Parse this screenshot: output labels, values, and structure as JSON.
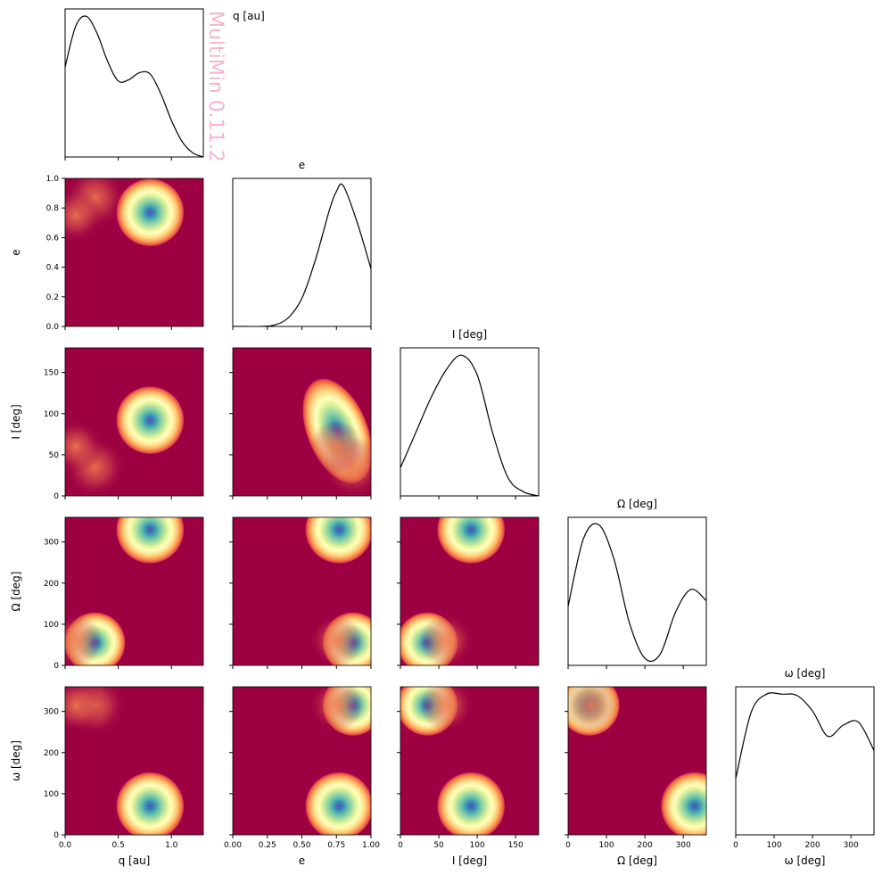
{
  "watermark": "MultiMin 0.11.2",
  "colormap": "Spectral",
  "colors": {
    "background_low": "#9e0142",
    "mid": "#fee08b",
    "high": "#5e4fa2",
    "line": "#000000"
  },
  "chart_data": {
    "type": "corner",
    "variables": [
      {
        "key": "q",
        "symbol": "q",
        "unit": "[au]",
        "range": [
          0,
          1.3
        ],
        "ticks": [
          0.0,
          0.5,
          1.0
        ],
        "tick_labels": [
          "0.0",
          "0.5",
          "1.0"
        ]
      },
      {
        "key": "e",
        "symbol": "e",
        "unit": "",
        "range": [
          0,
          1.0
        ],
        "ticks": [
          0.0,
          0.25,
          0.5,
          0.75,
          1.0
        ],
        "tick_labels": [
          "0.00",
          "0.25",
          "0.50",
          "0.75",
          "1.00"
        ]
      },
      {
        "key": "I",
        "symbol": "I",
        "unit": "[deg]",
        "range": [
          0,
          180
        ],
        "ticks": [
          0,
          50,
          100,
          150
        ],
        "tick_labels": [
          "0",
          "50",
          "100",
          "150"
        ]
      },
      {
        "key": "Omega",
        "symbol": "Ω",
        "unit": "[deg]",
        "range": [
          0,
          360
        ],
        "ticks": [
          0,
          100,
          200,
          300
        ],
        "tick_labels": [
          "0",
          "100",
          "200",
          "300"
        ]
      },
      {
        "key": "omega",
        "symbol": "ω",
        "unit": "[deg]",
        "range": [
          0,
          360
        ],
        "ticks": [
          0,
          100,
          200,
          300
        ],
        "tick_labels": [
          "0",
          "100",
          "200",
          "300"
        ]
      }
    ],
    "diagonal_titles": [
      "q [au]",
      "e",
      "I [deg]",
      "Ω [deg]",
      "ω [deg]"
    ],
    "axis_labels": [
      "q [au]",
      "e",
      "I [deg]",
      "Ω [deg]",
      "ω [deg]"
    ],
    "y_tick_labels": {
      "e": [
        "0.0",
        "0.2",
        "0.4",
        "0.6",
        "0.8",
        "1.0"
      ],
      "I": [
        "0",
        "50",
        "100",
        "150"
      ],
      "Omega": [
        "0",
        "100",
        "200",
        "300"
      ],
      "omega": [
        "0",
        "100",
        "200",
        "300"
      ]
    },
    "components": [
      {
        "weight": 0.55,
        "mean": {
          "q": 0.8,
          "e": 0.77,
          "I": 92,
          "Omega": 330,
          "omega": 70
        }
      },
      {
        "weight": 0.35,
        "mean": {
          "q": 0.28,
          "e": 0.87,
          "I": 35,
          "Omega": 55,
          "omega": 315
        }
      },
      {
        "weight": 0.15,
        "mean": {
          "q": 0.1,
          "e": 0.75,
          "I": 60,
          "Omega": 60,
          "omega": 315
        }
      }
    ],
    "marginals": {
      "q": {
        "x": [
          0,
          0.1,
          0.2,
          0.3,
          0.4,
          0.5,
          0.6,
          0.7,
          0.8,
          0.9,
          1.0,
          1.1,
          1.2,
          1.3
        ],
        "density": [
          0.64,
          0.93,
          1.0,
          0.88,
          0.68,
          0.54,
          0.55,
          0.6,
          0.59,
          0.45,
          0.26,
          0.11,
          0.03,
          0.0
        ]
      },
      "e": {
        "x": [
          0,
          0.1,
          0.2,
          0.3,
          0.4,
          0.5,
          0.6,
          0.7,
          0.75,
          0.8,
          0.9,
          1.0
        ],
        "density": [
          0.0,
          0.0,
          0.0,
          0.01,
          0.06,
          0.2,
          0.48,
          0.83,
          0.96,
          1.0,
          0.74,
          0.41
        ]
      },
      "I": {
        "x": [
          0,
          20,
          40,
          60,
          80,
          100,
          120,
          140,
          160,
          180
        ],
        "density": [
          0.2,
          0.45,
          0.7,
          0.9,
          1.0,
          0.86,
          0.45,
          0.13,
          0.03,
          0.0
        ]
      },
      "Omega": {
        "x": [
          0,
          40,
          80,
          120,
          160,
          200,
          240,
          280,
          320,
          360
        ],
        "density": [
          0.42,
          0.9,
          1.0,
          0.75,
          0.3,
          0.05,
          0.08,
          0.38,
          0.54,
          0.46
        ]
      },
      "omega": {
        "x": [
          0,
          40,
          80,
          120,
          160,
          200,
          240,
          280,
          320,
          360
        ],
        "density": [
          0.4,
          0.87,
          1.0,
          1.0,
          0.99,
          0.88,
          0.7,
          0.78,
          0.8,
          0.6
        ]
      }
    }
  }
}
